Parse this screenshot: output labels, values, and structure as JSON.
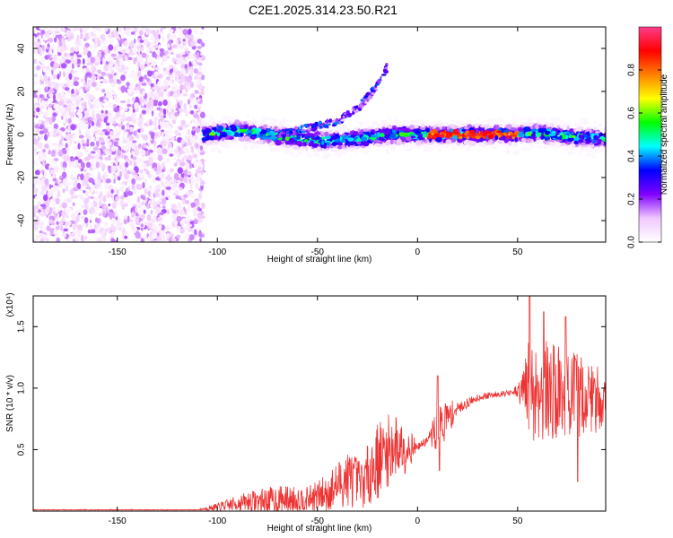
{
  "title": "C2E1.2025.314.23.50.R21",
  "chart_data": [
    {
      "type": "heatmap",
      "name": "spectrogram",
      "xlabel": "Height of straight line (km)",
      "ylabel": "Frequency (Hz)",
      "xlim": [
        -192,
        94
      ],
      "ylim": [
        -50,
        50
      ],
      "x_ticks": [
        -150,
        -100,
        -50,
        0,
        50
      ],
      "x_tick_labels": [
        "-150",
        "-100",
        "-50",
        "0",
        "50"
      ],
      "y_ticks": [
        -40,
        -20,
        0,
        20,
        40
      ],
      "y_tick_labels": [
        "-40",
        "-20",
        "0",
        "20",
        "40"
      ],
      "colorbar": {
        "label": "Normalized spectral amplitude",
        "range": [
          0,
          1
        ],
        "ticks": [
          0.0,
          0.2,
          0.4,
          0.6,
          0.8
        ],
        "tick_labels": [
          "0.0",
          "0.2",
          "0.4",
          "0.6",
          "0.8"
        ],
        "colors": [
          "#ffffff",
          "#f0c8ff",
          "#8000ff",
          "#0000ff",
          "#00ffff",
          "#00ff00",
          "#ffff00",
          "#ff8000",
          "#ff0000",
          "#ff3c8c"
        ]
      },
      "regions": [
        {
          "description": "broadband noise",
          "x_range": [
            -192,
            -107
          ],
          "freq_range": [
            -50,
            50
          ],
          "amplitude": [
            0.02,
            0.18
          ]
        },
        {
          "description": "signal band",
          "x_range": [
            -107,
            94
          ],
          "freq_center": 0,
          "amplitude_peak": 0.95,
          "peak_x_range": [
            5,
            50
          ]
        }
      ],
      "center_line": [
        {
          "x": -105,
          "f": 0
        },
        {
          "x": -90,
          "f": 2
        },
        {
          "x": -75,
          "f": 0
        },
        {
          "x": -60,
          "f": -2
        },
        {
          "x": -45,
          "f": -3
        },
        {
          "x": -30,
          "f": -2
        },
        {
          "x": -15,
          "f": 0
        },
        {
          "x": 0,
          "f": 0
        },
        {
          "x": 20,
          "f": 0
        },
        {
          "x": 50,
          "f": 0
        },
        {
          "x": 60,
          "f": 1
        },
        {
          "x": 75,
          "f": -1
        },
        {
          "x": 94,
          "f": -2
        }
      ],
      "side_arm": [
        {
          "x": -70,
          "f": 0
        },
        {
          "x": -55,
          "f": 3
        },
        {
          "x": -40,
          "f": 6
        },
        {
          "x": -30,
          "f": 12
        },
        {
          "x": -25,
          "f": 17
        },
        {
          "x": -20,
          "f": 23
        },
        {
          "x": -15,
          "f": 32
        }
      ]
    },
    {
      "type": "line",
      "name": "snr",
      "xlabel": "Height of straight line (km)",
      "ylabel": "SNR (10 * v/v)",
      "y_multiplier": "(x10⁴)",
      "xlim": [
        -192,
        94
      ],
      "ylim": [
        0,
        1.75
      ],
      "x_ticks": [
        -150,
        -100,
        -50,
        0,
        50
      ],
      "x_tick_labels": [
        "-150",
        "-100",
        "-50",
        "0",
        "50"
      ],
      "y_ticks": [
        0.5,
        1.0,
        1.5
      ],
      "y_tick_labels": [
        "0.5",
        "1.0",
        "1.5"
      ],
      "color": "#ee3333",
      "series": [
        {
          "name": "SNR",
          "envelope": [
            {
              "x": -192,
              "base": 0.01,
              "spread": 0.004
            },
            {
              "x": -110,
              "base": 0.01,
              "spread": 0.004
            },
            {
              "x": -100,
              "base": 0.03,
              "spread": 0.04
            },
            {
              "x": -85,
              "base": 0.07,
              "spread": 0.1
            },
            {
              "x": -70,
              "base": 0.08,
              "spread": 0.15
            },
            {
              "x": -55,
              "base": 0.09,
              "spread": 0.12
            },
            {
              "x": -45,
              "base": 0.13,
              "spread": 0.2
            },
            {
              "x": -35,
              "base": 0.25,
              "spread": 0.3
            },
            {
              "x": -28,
              "base": 0.2,
              "spread": 0.25
            },
            {
              "x": -20,
              "base": 0.38,
              "spread": 0.4
            },
            {
              "x": -12,
              "base": 0.5,
              "spread": 0.35
            },
            {
              "x": -5,
              "base": 0.5,
              "spread": 0.25
            },
            {
              "x": 0,
              "base": 0.52,
              "spread": 0.03
            },
            {
              "x": 5,
              "base": 0.57,
              "spread": 0.05
            },
            {
              "x": 10,
              "base": 0.65,
              "spread": 0.25
            },
            {
              "x": 15,
              "base": 0.74,
              "spread": 0.2
            },
            {
              "x": 20,
              "base": 0.83,
              "spread": 0.06
            },
            {
              "x": 30,
              "base": 0.92,
              "spread": 0.04
            },
            {
              "x": 40,
              "base": 0.95,
              "spread": 0.03
            },
            {
              "x": 48,
              "base": 0.96,
              "spread": 0.03
            },
            {
              "x": 52,
              "base": 0.95,
              "spread": 0.2
            },
            {
              "x": 56,
              "base": 0.95,
              "spread": 0.55
            },
            {
              "x": 70,
              "base": 0.93,
              "spread": 0.5
            },
            {
              "x": 85,
              "base": 0.9,
              "spread": 0.4
            },
            {
              "x": 94,
              "base": 0.88,
              "spread": 0.3
            }
          ],
          "spikes": [
            {
              "x": 10,
              "value": 1.1
            },
            {
              "x": 11,
              "value": 0.33
            },
            {
              "x": 56,
              "value": 1.75
            },
            {
              "x": 63,
              "value": 1.62
            },
            {
              "x": 74,
              "value": 1.58
            },
            {
              "x": 80,
              "value": 0.24
            }
          ]
        }
      ]
    }
  ]
}
